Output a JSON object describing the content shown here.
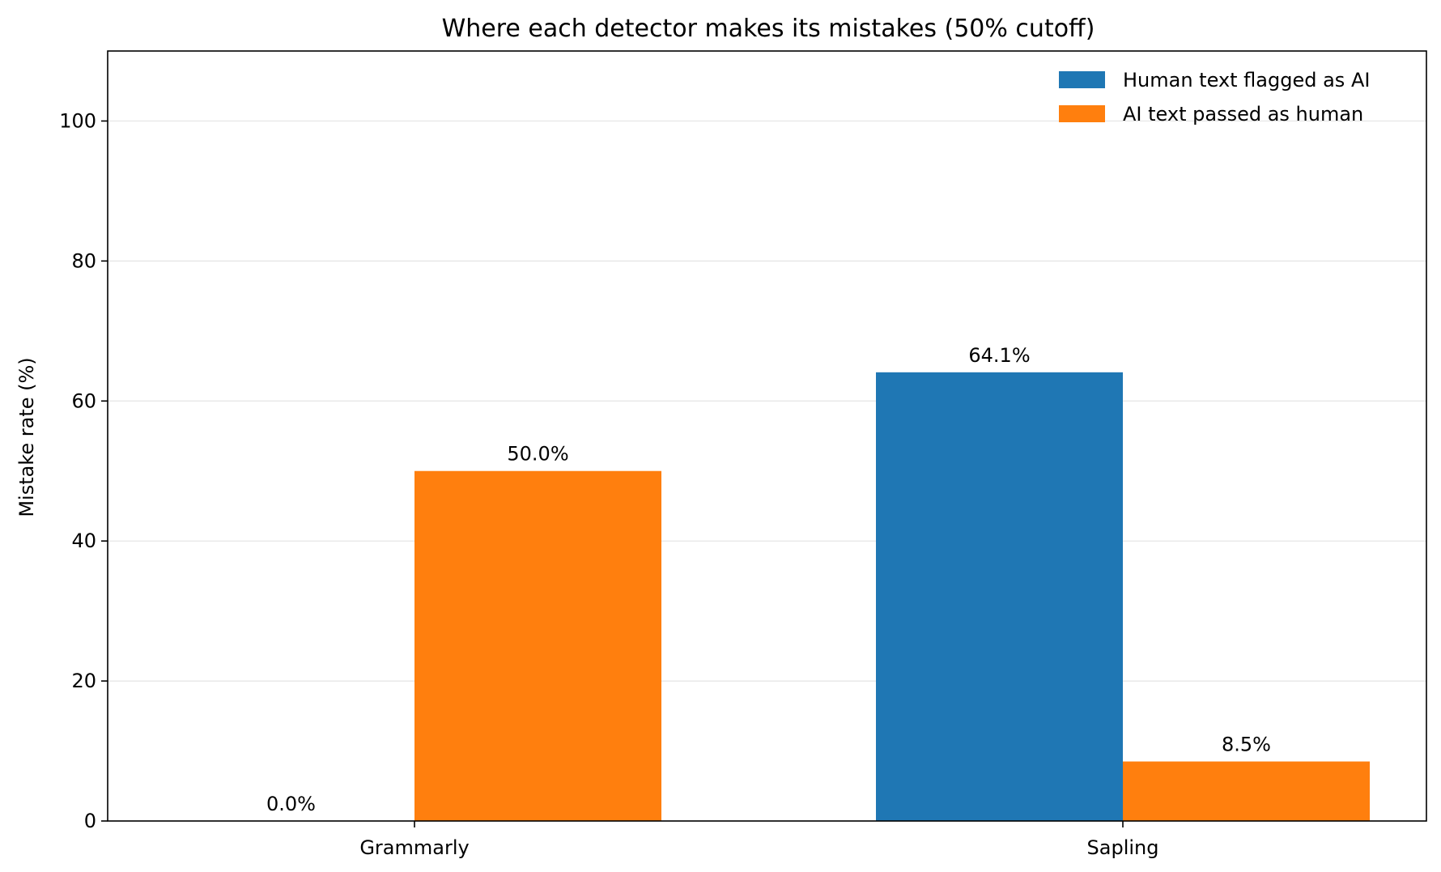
{
  "chart_data": {
    "type": "bar",
    "title": "Where each detector makes its mistakes (50% cutoff)",
    "xlabel": "",
    "ylabel": "Mistake rate (%)",
    "categories": [
      "Grammarly",
      "Sapling"
    ],
    "series": [
      {
        "name": "Human text flagged as AI",
        "color": "#1f77b4",
        "values": [
          0.0,
          64.1
        ],
        "labels": [
          "0.0%",
          "64.1%"
        ]
      },
      {
        "name": "AI text passed as human",
        "color": "#ff7f0e",
        "values": [
          50.0,
          8.5
        ],
        "labels": [
          "50.0%",
          "8.5%"
        ]
      }
    ],
    "ylim": [
      0,
      110
    ],
    "yticks": [
      0,
      20,
      40,
      60,
      80,
      100
    ],
    "ytick_labels": [
      "0",
      "20",
      "40",
      "60",
      "80",
      "100"
    ],
    "grid": "y",
    "legend_position": "top-right"
  }
}
